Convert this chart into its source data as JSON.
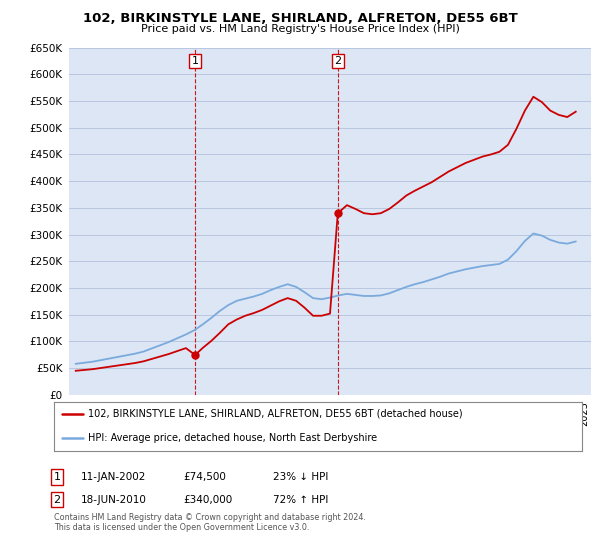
{
  "title": "102, BIRKINSTYLE LANE, SHIRLAND, ALFRETON, DE55 6BT",
  "subtitle": "Price paid vs. HM Land Registry's House Price Index (HPI)",
  "property_label": "102, BIRKINSTYLE LANE, SHIRLAND, ALFRETON, DE55 6BT (detached house)",
  "hpi_label": "HPI: Average price, detached house, North East Derbyshire",
  "footnote1": "Contains HM Land Registry data © Crown copyright and database right 2024.",
  "footnote2": "This data is licensed under the Open Government Licence v3.0.",
  "transaction1_date": "11-JAN-2002",
  "transaction1_price": "£74,500",
  "transaction1_hpi": "23% ↓ HPI",
  "transaction2_date": "18-JUN-2010",
  "transaction2_price": "£340,000",
  "transaction2_hpi": "72% ↑ HPI",
  "ylim": [
    0,
    650000
  ],
  "yticks": [
    0,
    50000,
    100000,
    150000,
    200000,
    250000,
    300000,
    350000,
    400000,
    450000,
    500000,
    550000,
    600000,
    650000
  ],
  "bg_color": "#dce6f5",
  "grid_color": "#b8c8e0",
  "property_color": "#cc0000",
  "hpi_color": "#7aaadd",
  "marker1_x": 2002.04,
  "marker1_y": 74500,
  "marker2_x": 2010.46,
  "marker2_y": 340000,
  "vline1_x": 2002.04,
  "vline2_x": 2010.46,
  "xlim_left": 1994.6,
  "xlim_right": 2025.4,
  "hpi_years": [
    1995,
    1995.5,
    1996,
    1996.5,
    1997,
    1997.5,
    1998,
    1998.5,
    1999,
    1999.5,
    2000,
    2000.5,
    2001,
    2001.5,
    2002,
    2002.5,
    2003,
    2003.5,
    2004,
    2004.5,
    2005,
    2005.5,
    2006,
    2006.5,
    2007,
    2007.5,
    2008,
    2008.5,
    2009,
    2009.5,
    2010,
    2010.5,
    2011,
    2011.5,
    2012,
    2012.5,
    2013,
    2013.5,
    2014,
    2014.5,
    2015,
    2015.5,
    2016,
    2016.5,
    2017,
    2017.5,
    2018,
    2018.5,
    2019,
    2019.5,
    2020,
    2020.5,
    2021,
    2021.5,
    2022,
    2022.5,
    2023,
    2023.5,
    2024,
    2024.5
  ],
  "hpi_values": [
    58000,
    60000,
    62000,
    65000,
    68000,
    71000,
    74000,
    77000,
    81000,
    87000,
    93000,
    99000,
    106000,
    113000,
    121000,
    132000,
    144000,
    157000,
    168000,
    176000,
    180000,
    184000,
    189000,
    196000,
    202000,
    207000,
    202000,
    192000,
    181000,
    179000,
    182000,
    186000,
    189000,
    187000,
    185000,
    185000,
    186000,
    190000,
    196000,
    202000,
    207000,
    211000,
    216000,
    221000,
    227000,
    231000,
    235000,
    238000,
    241000,
    243000,
    245000,
    253000,
    269000,
    288000,
    302000,
    298000,
    290000,
    285000,
    283000,
    287000
  ],
  "prop_years": [
    1995,
    1995.5,
    1996,
    1996.5,
    1997,
    1997.5,
    1998,
    1998.5,
    1999,
    1999.5,
    2000,
    2000.5,
    2001,
    2001.5,
    2002.04,
    2002.5,
    2003,
    2003.5,
    2004,
    2004.5,
    2005,
    2005.5,
    2006,
    2006.5,
    2007,
    2007.5,
    2008,
    2008.5,
    2009,
    2009.5,
    2010,
    2010.46,
    2011,
    2011.5,
    2012,
    2012.5,
    2013,
    2013.5,
    2014,
    2014.5,
    2015,
    2015.5,
    2016,
    2016.5,
    2017,
    2017.5,
    2018,
    2018.5,
    2019,
    2019.5,
    2020,
    2020.5,
    2021,
    2021.5,
    2022,
    2022.5,
    2023,
    2023.5,
    2024,
    2024.5
  ],
  "prop_values": [
    45000,
    46500,
    48000,
    50300,
    52600,
    54900,
    57200,
    59500,
    62700,
    67300,
    71900,
    76500,
    82000,
    87400,
    74500,
    88000,
    101000,
    116000,
    132000,
    141000,
    148000,
    153000,
    159000,
    167000,
    175000,
    181000,
    176000,
    163000,
    148000,
    148000,
    152000,
    340000,
    355000,
    348000,
    340000,
    338000,
    340000,
    348000,
    360000,
    373000,
    382000,
    390000,
    398000,
    408000,
    418000,
    426000,
    434000,
    440000,
    446000,
    450000,
    455000,
    468000,
    498000,
    532000,
    558000,
    548000,
    532000,
    524000,
    520000,
    530000
  ]
}
